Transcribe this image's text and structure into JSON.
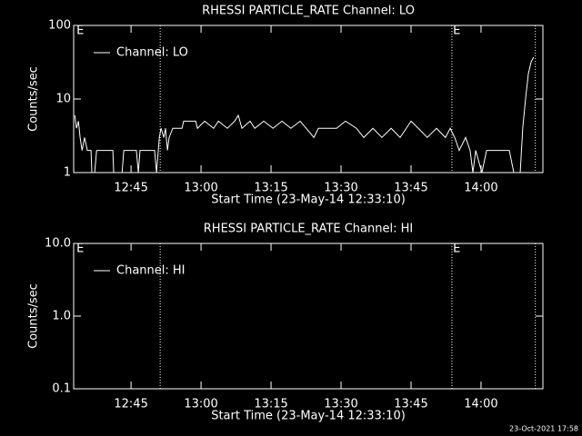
{
  "chart_data": [
    {
      "type": "line",
      "title": "RHESSI PARTICLE_RATE Channel: LO",
      "xlabel": "Start Time (23-May-14 12:33:10)",
      "ylabel": "Counts/sec",
      "xlim": [
        12.545,
        14.221
      ],
      "xticks": [
        {
          "value": 12.75,
          "label": "12:45"
        },
        {
          "value": 13,
          "label": "13:00"
        },
        {
          "value": 13.25,
          "label": "13:15"
        },
        {
          "value": 13.5,
          "label": "13:30"
        },
        {
          "value": 13.75,
          "label": "13:45"
        },
        {
          "value": 14,
          "label": "14:00"
        }
      ],
      "ylim": [
        1,
        100
      ],
      "yticks": [
        1,
        10,
        100
      ],
      "log_y": true,
      "legend": "upper left",
      "series": [
        {
          "name": "Channel: LO",
          "color": "#ffffff",
          "x": [
            12.549,
            12.555,
            12.562,
            12.568,
            12.575,
            12.584,
            12.594,
            12.607,
            12.61,
            12.62,
            12.627,
            12.685,
            12.688,
            12.718,
            12.724,
            12.769,
            12.776,
            12.782,
            12.834,
            12.841,
            12.851,
            12.857,
            12.867,
            12.873,
            12.88,
            12.886,
            12.899,
            12.932,
            12.938,
            12.981,
            12.987,
            13.013,
            13.045,
            13.062,
            13.094,
            13.12,
            13.133,
            13.146,
            13.175,
            13.192,
            13.224,
            13.257,
            13.289,
            13.321,
            13.354,
            13.403,
            13.419,
            13.484,
            13.516,
            13.555,
            13.581,
            13.614,
            13.646,
            13.679,
            13.711,
            13.75,
            13.776,
            13.808,
            13.841,
            13.873,
            13.89,
            13.906,
            13.922,
            13.945,
            13.961,
            13.971,
            13.981,
            14.003,
            14.02,
            14.101,
            14.117,
            14.14,
            14.149,
            14.159,
            14.169,
            14.179,
            14.188
          ],
          "values": [
            6,
            4,
            5,
            3,
            2,
            3,
            2,
            2,
            1,
            1,
            2,
            2,
            1,
            1,
            2,
            2,
            1,
            2,
            2,
            1,
            3,
            4,
            3,
            4,
            2,
            3,
            4,
            4,
            5,
            5,
            4,
            5,
            4,
            5,
            4,
            5,
            6,
            4,
            5,
            4,
            5,
            4,
            5,
            4,
            5,
            3,
            4,
            4,
            5,
            4,
            3,
            4,
            3,
            4,
            3,
            5,
            4,
            3,
            4,
            3,
            4,
            3,
            2,
            3,
            2,
            1,
            2,
            1,
            2,
            2,
            1,
            1,
            4,
            10,
            22,
            32,
            37
          ]
        }
      ],
      "vlines": [
        12.854,
        13.896,
        14.194
      ],
      "annotations": [
        {
          "text": "E",
          "x": 12.555
        },
        {
          "text": "E",
          "x": 13.9
        }
      ]
    },
    {
      "type": "line",
      "title": "RHESSI PARTICLE_RATE Channel: HI",
      "xlabel": "Start Time (23-May-14 12:33:10)",
      "ylabel": "Counts/sec",
      "xlim": [
        12.545,
        14.221
      ],
      "xticks": [
        {
          "value": 12.75,
          "label": "12:45"
        },
        {
          "value": 13,
          "label": "13:00"
        },
        {
          "value": 13.25,
          "label": "13:15"
        },
        {
          "value": 13.5,
          "label": "13:30"
        },
        {
          "value": 13.75,
          "label": "13:45"
        },
        {
          "value": 14,
          "label": "14:00"
        }
      ],
      "ylim": [
        0.1,
        10
      ],
      "yticks": [
        0.1,
        {
          "value": 1,
          "label": "1.0"
        },
        {
          "value": 10,
          "label": "10.0"
        }
      ],
      "log_y": true,
      "legend": "upper left",
      "series": [
        {
          "name": "Channel: HI",
          "color": "#ffffff",
          "x": [],
          "values": []
        }
      ],
      "vlines": [
        12.854,
        13.896,
        14.194
      ],
      "annotations": [
        {
          "text": "E",
          "x": 12.555
        },
        {
          "text": "E",
          "x": 13.9
        }
      ]
    }
  ],
  "footer": "23-Oct-2021 17:58"
}
